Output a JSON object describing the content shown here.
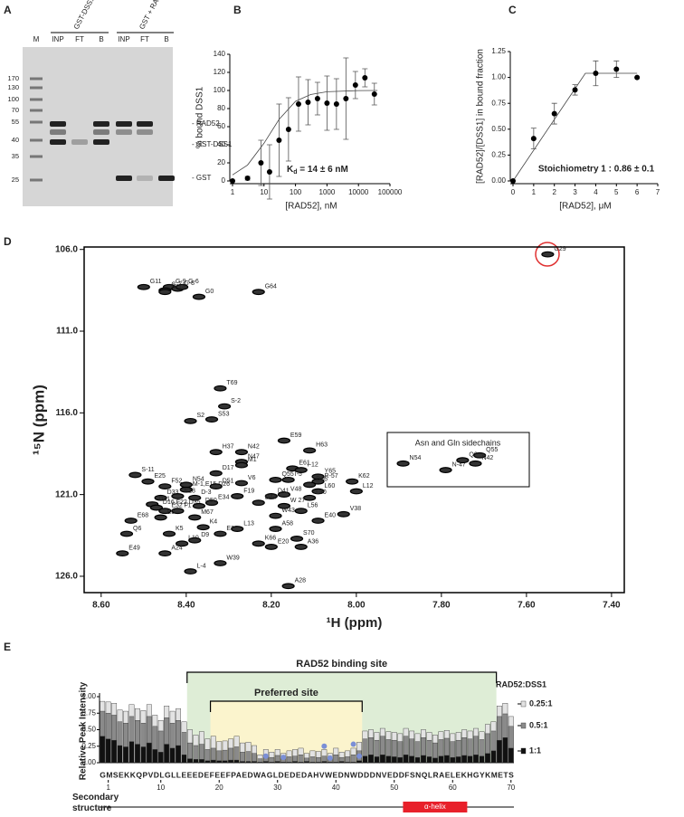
{
  "panel_labels": [
    "A",
    "B",
    "C",
    "D",
    "E"
  ],
  "gel": {
    "marker_lane": "M",
    "lanes": [
      "INP",
      "FT",
      "B",
      "INP",
      "FT",
      "B"
    ],
    "groups": [
      "GST-DSS1 + RAD52",
      "GST + RAD52"
    ],
    "ladder": [
      170,
      130,
      100,
      70,
      55,
      40,
      35,
      25
    ],
    "band_labels": [
      "- RAD52",
      "- GST-DSS1",
      "- GST"
    ]
  },
  "chart_data": [
    {
      "type": "scatter",
      "x_label": "[RAD52], nM",
      "y_label": "% bound DSS1",
      "x_scale": "log",
      "xlim": [
        1,
        100000
      ],
      "xticks": [
        1,
        10,
        100,
        1000,
        10000,
        100000
      ],
      "ylim": [
        0,
        140
      ],
      "yticks": [
        0,
        20,
        40,
        60,
        80,
        100,
        120,
        140
      ],
      "x": [
        1,
        3,
        8,
        15,
        30,
        60,
        125,
        250,
        500,
        1000,
        2000,
        4000,
        8000,
        16000,
        32000
      ],
      "values": [
        0,
        3,
        20,
        10,
        45,
        57,
        85,
        87,
        91,
        86,
        85,
        91,
        106,
        114,
        96
      ],
      "errors": [
        0,
        2,
        25,
        30,
        40,
        35,
        30,
        25,
        18,
        30,
        28,
        45,
        15,
        10,
        12
      ],
      "fit": {
        "x": [
          1,
          3,
          10,
          30,
          100,
          300,
          1000,
          10000,
          40000
        ],
        "y": [
          6.7,
          17.6,
          41.7,
          68,
          88,
          95.5,
          98.6,
          99.9,
          100
        ]
      },
      "annotation": {
        "text": "K",
        "sub": "d",
        "rest": " = 14 ± 6 nM"
      }
    },
    {
      "type": "scatter",
      "x_label": "[RAD52], μM",
      "y_label": "[RAD52]/[DSS1] in bound fraction",
      "xlim": [
        0,
        7
      ],
      "xticks": [
        0,
        1,
        2,
        3,
        4,
        5,
        6,
        7
      ],
      "ylim": [
        0,
        1.25
      ],
      "yticks": [
        {
          "value": 0,
          "label": "0.00"
        },
        {
          "value": 0.25,
          "label": "0.25"
        },
        {
          "value": 0.5,
          "label": "0.50"
        },
        {
          "value": 0.75,
          "label": "0.75"
        },
        {
          "value": 1,
          "label": "1.00"
        },
        {
          "value": 1.25,
          "label": "1.25"
        }
      ],
      "x": [
        0,
        1,
        2,
        3,
        4,
        5,
        6
      ],
      "values": [
        0,
        0.41,
        0.65,
        0.88,
        1.04,
        1.08,
        1.0
      ],
      "errors": [
        0,
        0.1,
        0.1,
        0.05,
        0.12,
        0.08,
        0
      ],
      "fit": {
        "x": [
          0,
          3.5,
          6
        ],
        "y": [
          0,
          1.04,
          1.04
        ]
      },
      "annotation": "Stoichiometry 1 : 0.86 ± 0.1"
    },
    {
      "type": "spectrum",
      "x_label": "¹H (ppm)",
      "y_label": "¹⁵N (ppm)",
      "xlim": [
        8.64,
        7.37
      ],
      "xticks": [
        {
          "value": 8.6,
          "label": "8.60"
        },
        {
          "value": 8.4,
          "label": "8.40"
        },
        {
          "value": 8.2,
          "label": "8.20"
        },
        {
          "value": 8.0,
          "label": "8.00"
        },
        {
          "value": 7.8,
          "label": "7.80"
        },
        {
          "value": 7.6,
          "label": "7.60"
        },
        {
          "value": 7.4,
          "label": "7.40"
        }
      ],
      "ylim": [
        105.85,
        127.0
      ],
      "yticks": [
        {
          "value": 106,
          "label": "106.0"
        },
        {
          "value": 111,
          "label": "111.0"
        },
        {
          "value": 116,
          "label": "116.0"
        },
        {
          "value": 121,
          "label": "121.0"
        },
        {
          "value": 126,
          "label": "126.0"
        }
      ],
      "labels": [
        "G11",
        "G-9",
        "G-7",
        "G-8",
        "G-6",
        "G-13",
        "G0",
        "G64",
        "G29",
        "T69",
        "S-2",
        "S2",
        "S53",
        "H37",
        "N42",
        "H63",
        "E59",
        "N47",
        "M1",
        "E61",
        "I-12",
        "Y65",
        "R-57",
        "K62",
        "E25",
        "S-11",
        "F52",
        "N54",
        "M-1,E15,D26",
        "D17",
        "V6",
        "Q55",
        "I-5",
        "D46",
        "L60",
        "L30",
        "V48",
        "D41",
        "D51",
        "F19",
        "D-3",
        "E34",
        "D33",
        "D31",
        "D16,F22,D35",
        "E32",
        "E18",
        "F1",
        "D50",
        "D44",
        "W43",
        "W 27",
        "L56",
        "E40",
        "V38",
        "L12",
        "E68",
        "E3",
        "M67",
        "K4",
        "E21",
        "L13",
        "A58",
        "S70",
        "K5",
        "L10",
        "D9",
        "Q6",
        "E49",
        "A24",
        "K66",
        "E20",
        "A36",
        "W39",
        "L-4",
        "A28"
      ],
      "x": [
        8.5,
        8.44,
        8.45,
        8.42,
        8.41,
        8.45,
        8.37,
        8.23,
        7.55,
        8.32,
        8.31,
        8.39,
        8.34,
        8.33,
        8.27,
        8.11,
        8.17,
        8.27,
        8.27,
        8.15,
        8.13,
        8.09,
        8.09,
        8.01,
        8.49,
        8.52,
        8.45,
        8.4,
        8.4,
        8.33,
        8.27,
        8.19,
        8.16,
        8.11,
        8.09,
        8.11,
        8.17,
        8.2,
        8.33,
        8.28,
        8.38,
        8.34,
        8.46,
        8.48,
        8.47,
        8.45,
        8.42,
        8.42,
        8.37,
        8.23,
        8.19,
        8.17,
        8.13,
        8.09,
        8.03,
        8.0,
        8.53,
        8.46,
        8.38,
        8.36,
        8.32,
        8.28,
        8.19,
        8.14,
        8.44,
        8.41,
        8.38,
        8.54,
        8.55,
        8.45,
        8.23,
        8.2,
        8.13,
        8.32,
        8.39,
        8.16
      ],
      "y": [
        108.3,
        108.3,
        108.5,
        108.4,
        108.3,
        108.6,
        108.9,
        108.6,
        106.3,
        114.5,
        115.6,
        116.5,
        116.4,
        118.4,
        118.4,
        118.3,
        117.7,
        119.0,
        119.2,
        119.4,
        119.5,
        119.9,
        120.2,
        120.2,
        120.2,
        119.8,
        120.5,
        120.4,
        120.7,
        119.7,
        120.3,
        120.1,
        120.1,
        120.4,
        120.8,
        121.2,
        121.0,
        121.1,
        120.5,
        121.1,
        121.2,
        121.5,
        121.2,
        121.6,
        121.8,
        122.0,
        121.1,
        122.0,
        121.7,
        121.5,
        122.3,
        121.7,
        122.0,
        122.6,
        122.2,
        120.8,
        122.6,
        122.4,
        122.4,
        123.0,
        123.4,
        123.1,
        123.1,
        123.7,
        123.4,
        124.0,
        123.8,
        123.4,
        124.6,
        124.6,
        124.0,
        124.2,
        124.2,
        125.2,
        125.7,
        126.6
      ],
      "inset": {
        "title": "Asn and Gln sidechains",
        "labels": [
          "N54",
          "N-47",
          "Q6",
          "Q55",
          "N42"
        ],
        "x": [
          7.89,
          7.79,
          7.75,
          7.71,
          7.72
        ],
        "y": [
          119.1,
          119.5,
          118.9,
          118.6,
          119.1
        ]
      }
    },
    {
      "type": "bar",
      "y_label": "Relative Peak Intensity",
      "legend_title": "RAD52:DSS1",
      "sequence": "GMSEKKQPVDLGLLEEEDEFEEFPAEDWAGLDEDEDAHVWEDNWDDDNVEDDFSNQLRAELEKHGYKMETS",
      "xlim": [
        -0.5,
        70.5
      ],
      "xticks": [
        1,
        10,
        20,
        30,
        40,
        50,
        60,
        70
      ],
      "ylim": [
        0,
        1.05
      ],
      "yticks": [
        {
          "value": 0,
          "label": "0.00"
        },
        {
          "value": 0.25,
          "label": "0.25"
        },
        {
          "value": 0.5,
          "label": "0.50"
        },
        {
          "value": 0.75,
          "label": "0.75"
        },
        {
          "value": 1,
          "label": "1.00"
        }
      ],
      "x": [
        0,
        1,
        2,
        3,
        4,
        5,
        6,
        7,
        8,
        9,
        10,
        11,
        12,
        13,
        14,
        15,
        16,
        17,
        18,
        19,
        20,
        21,
        22,
        23,
        24,
        25,
        26,
        27,
        28,
        29,
        30,
        31,
        32,
        33,
        34,
        35,
        36,
        37,
        38,
        39,
        40,
        41,
        42,
        43,
        44,
        45,
        46,
        47,
        48,
        49,
        50,
        51,
        52,
        53,
        54,
        55,
        56,
        57,
        58,
        59,
        60,
        61,
        62,
        63,
        64,
        65,
        66,
        67,
        68,
        69,
        70
      ],
      "series": [
        {
          "name": "0.25:1",
          "color": "#e3e3e3",
          "values": [
            0.93,
            0.92,
            0.9,
            0.8,
            0.78,
            0.88,
            0.82,
            0.79,
            0.88,
            0.72,
            0.64,
            0.86,
            0.78,
            0.82,
            0.62,
            0.5,
            0.42,
            0.47,
            0.36,
            0.4,
            0.32,
            0.33,
            0.36,
            0.4,
            0.3,
            0.31,
            0.26,
            0.12,
            0.2,
            0.16,
            0.2,
            0.14,
            0.18,
            0.2,
            0.22,
            0.14,
            0.18,
            0.17,
            0.2,
            0.14,
            0.22,
            0.16,
            0.18,
            0.22,
            0.31,
            0.48,
            0.5,
            0.46,
            0.52,
            0.47,
            0.46,
            0.44,
            0.52,
            0.48,
            0.44,
            0.5,
            0.46,
            0.42,
            0.47,
            0.49,
            0.44,
            0.46,
            0.5,
            0.48,
            0.52,
            0.47,
            0.58,
            0.62,
            0.86,
            0.9,
            0.7
          ]
        },
        {
          "name": "0.5:1",
          "color": "#8a8a8a",
          "values": [
            0.78,
            0.75,
            0.72,
            0.62,
            0.6,
            0.7,
            0.64,
            0.6,
            0.7,
            0.55,
            0.48,
            0.68,
            0.6,
            0.64,
            0.46,
            0.3,
            0.26,
            0.28,
            0.2,
            0.22,
            0.18,
            0.19,
            0.22,
            0.24,
            0.16,
            0.17,
            0.14,
            0.06,
            0.1,
            0.08,
            0.11,
            0.07,
            0.09,
            0.1,
            0.12,
            0.07,
            0.09,
            0.08,
            0.1,
            0.07,
            0.12,
            0.08,
            0.09,
            0.12,
            0.18,
            0.36,
            0.38,
            0.34,
            0.4,
            0.35,
            0.34,
            0.32,
            0.4,
            0.36,
            0.32,
            0.38,
            0.34,
            0.3,
            0.35,
            0.37,
            0.32,
            0.34,
            0.38,
            0.36,
            0.4,
            0.35,
            0.44,
            0.48,
            0.7,
            0.74,
            0.55
          ]
        },
        {
          "name": "1:1",
          "color": "#111111",
          "values": [
            0.4,
            0.36,
            0.34,
            0.26,
            0.24,
            0.32,
            0.28,
            0.24,
            0.3,
            0.2,
            0.16,
            0.28,
            0.22,
            0.26,
            0.12,
            0.06,
            0.05,
            0.05,
            0.03,
            0.04,
            0.03,
            0.03,
            0.04,
            0.04,
            0.02,
            0.02,
            0.02,
            0.01,
            0.02,
            0.01,
            0.02,
            0.01,
            0.01,
            0.02,
            0.01,
            0.02,
            0.01,
            0.01,
            0.02,
            0.01,
            0.01,
            0.02,
            0.01,
            0.01,
            0.03,
            0.1,
            0.12,
            0.09,
            0.12,
            0.1,
            0.09,
            0.08,
            0.12,
            0.1,
            0.08,
            0.11,
            0.09,
            0.07,
            0.1,
            0.11,
            0.08,
            0.09,
            0.11,
            0.1,
            0.12,
            0.1,
            0.14,
            0.18,
            0.34,
            0.38,
            0.22
          ]
        }
      ],
      "markers": {
        "color": "#7b8fd6",
        "x": [
          28,
          31,
          38,
          39,
          43,
          44
        ],
        "values": [
          0.1,
          0.08,
          0.25,
          0.07,
          0.28,
          0.1
        ]
      },
      "binding_site": {
        "label": "RAD52 binding site",
        "start": 15,
        "end": 67
      },
      "preferred_site": {
        "label": "Preferred site",
        "start": 19,
        "end": 44
      },
      "secondary_structure": {
        "label": "Secondary structure",
        "helix": {
          "label": "α-helix",
          "start": 52,
          "end": 62
        }
      }
    }
  ]
}
